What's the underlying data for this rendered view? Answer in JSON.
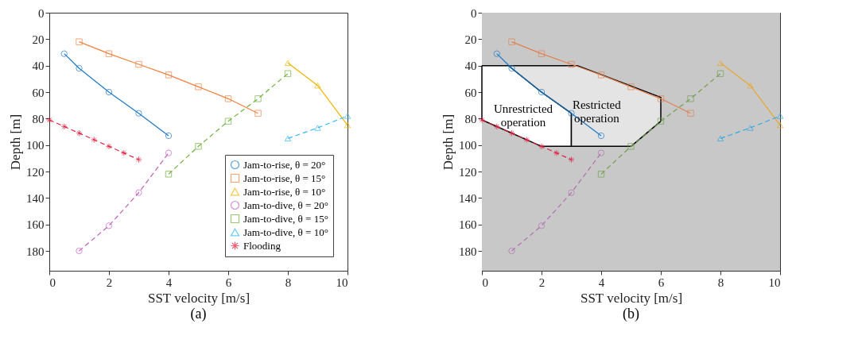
{
  "chart_data": [
    {
      "type": "line",
      "title": "(a)",
      "xlabel": "SST velocity [m/s]",
      "ylabel": "Depth [m]",
      "xlim": [
        0,
        10
      ],
      "xticks": [
        0,
        2,
        4,
        6,
        8,
        10
      ],
      "ylim": [
        195,
        0
      ],
      "yticks": [
        0,
        20,
        40,
        60,
        80,
        100,
        120,
        140,
        160,
        180
      ],
      "grid": false,
      "legend": "bottom right",
      "series": [
        {
          "name": "Jam-to-rise, θ = 20°",
          "color": "#1a78c8",
          "marker": "circle",
          "line_style": "solid",
          "x": [
            0.5,
            1,
            2,
            3,
            4
          ],
          "values": [
            31,
            42,
            60,
            76,
            93
          ]
        },
        {
          "name": "Jam-to-rise, θ = 15°",
          "color": "#f08040",
          "marker": "square",
          "line_style": "solid",
          "x": [
            1,
            2,
            3,
            4,
            5,
            6,
            7
          ],
          "values": [
            22,
            31,
            39,
            47,
            56,
            65,
            76
          ]
        },
        {
          "name": "Jam-to-rise, θ = 10°",
          "color": "#f0b400",
          "marker": "triangle",
          "line_style": "solid",
          "x": [
            8,
            9,
            10
          ],
          "values": [
            38,
            55,
            85
          ]
        },
        {
          "name": "Jam-to-dive, θ = 20°",
          "color": "#c060c0",
          "marker": "circle",
          "line_style": "dashed",
          "x": [
            1,
            2,
            3,
            4
          ],
          "values": [
            180,
            161,
            136,
            106
          ]
        },
        {
          "name": "Jam-to-dive, θ = 15°",
          "color": "#70b040",
          "marker": "square",
          "line_style": "dashed",
          "x": [
            4,
            5,
            6,
            7,
            8
          ],
          "values": [
            122,
            101,
            82,
            65,
            46
          ]
        },
        {
          "name": "Jam-to-dive, θ = 10°",
          "color": "#30b8f0",
          "marker": "triangle",
          "line_style": "dashed",
          "x": [
            8,
            9,
            10
          ],
          "values": [
            95,
            87,
            78
          ]
        },
        {
          "name": "Flooding",
          "color": "#e02040",
          "marker": "cross",
          "line_style": "dashed",
          "x": [
            0,
            0.5,
            1,
            1.5,
            2,
            2.5,
            3
          ],
          "values": [
            81,
            86,
            91,
            96,
            101,
            106,
            111
          ]
        }
      ]
    },
    {
      "type": "line",
      "title": "(b)",
      "xlabel": "SST velocity [m/s]",
      "ylabel": "Depth [m]",
      "xlim": [
        0,
        10
      ],
      "xticks": [
        0,
        2,
        4,
        6,
        8,
        10
      ],
      "ylim": [
        195,
        0
      ],
      "yticks": [
        0,
        20,
        40,
        60,
        80,
        100,
        120,
        140,
        160,
        180
      ],
      "grid": false,
      "bands": [
        {
          "axis": "y",
          "from": 0,
          "to": 195,
          "color": "#c8c8c8"
        }
      ],
      "annotations": [
        "Unrestricted operation",
        "Restricted operation"
      ],
      "series": [
        {
          "type": "area",
          "color": "#ffffff",
          "x": [
            0,
            0.9,
            1,
            2,
            3,
            3,
            2,
            0
          ],
          "values": [
            40,
            40,
            42,
            60,
            76,
            101,
            101,
            81
          ]
        },
        {
          "type": "area",
          "color": "#e4e4e4",
          "x": [
            0.9,
            3.2,
            6,
            6,
            5,
            3,
            3,
            2,
            1
          ],
          "values": [
            40,
            40,
            64,
            82,
            101,
            101,
            76,
            60,
            42
          ]
        },
        {
          "color": "#1a78c8",
          "marker": "circle",
          "line_style": "solid",
          "x": [
            0.5,
            1,
            2,
            3,
            4
          ],
          "values": [
            31,
            42,
            60,
            76,
            93
          ]
        },
        {
          "color": "#e08050",
          "marker": "square",
          "line_style": "solid",
          "x": [
            1,
            2,
            3,
            4,
            5,
            6,
            7
          ],
          "values": [
            22,
            31,
            39,
            47,
            56,
            65,
            76
          ]
        },
        {
          "color": "#e8a830",
          "marker": "triangle",
          "line_style": "solid",
          "x": [
            8,
            9,
            10
          ],
          "values": [
            38,
            55,
            85
          ]
        },
        {
          "color": "#b070b0",
          "marker": "circle",
          "line_style": "dashed",
          "x": [
            1,
            2,
            3,
            4
          ],
          "values": [
            180,
            161,
            136,
            106
          ]
        },
        {
          "color": "#70a050",
          "marker": "square",
          "line_style": "dashed",
          "x": [
            4,
            5,
            6,
            7,
            8
          ],
          "values": [
            122,
            101,
            82,
            65,
            46
          ]
        },
        {
          "color": "#30a8e0",
          "marker": "triangle",
          "line_style": "dashed",
          "x": [
            8,
            9,
            10
          ],
          "values": [
            95,
            87,
            78
          ]
        },
        {
          "color": "#e02040",
          "marker": "cross",
          "line_style": "dashed",
          "x": [
            0,
            0.5,
            1,
            1.5,
            2,
            2.5,
            3
          ],
          "values": [
            81,
            86,
            91,
            96,
            101,
            106,
            111
          ]
        }
      ]
    }
  ]
}
